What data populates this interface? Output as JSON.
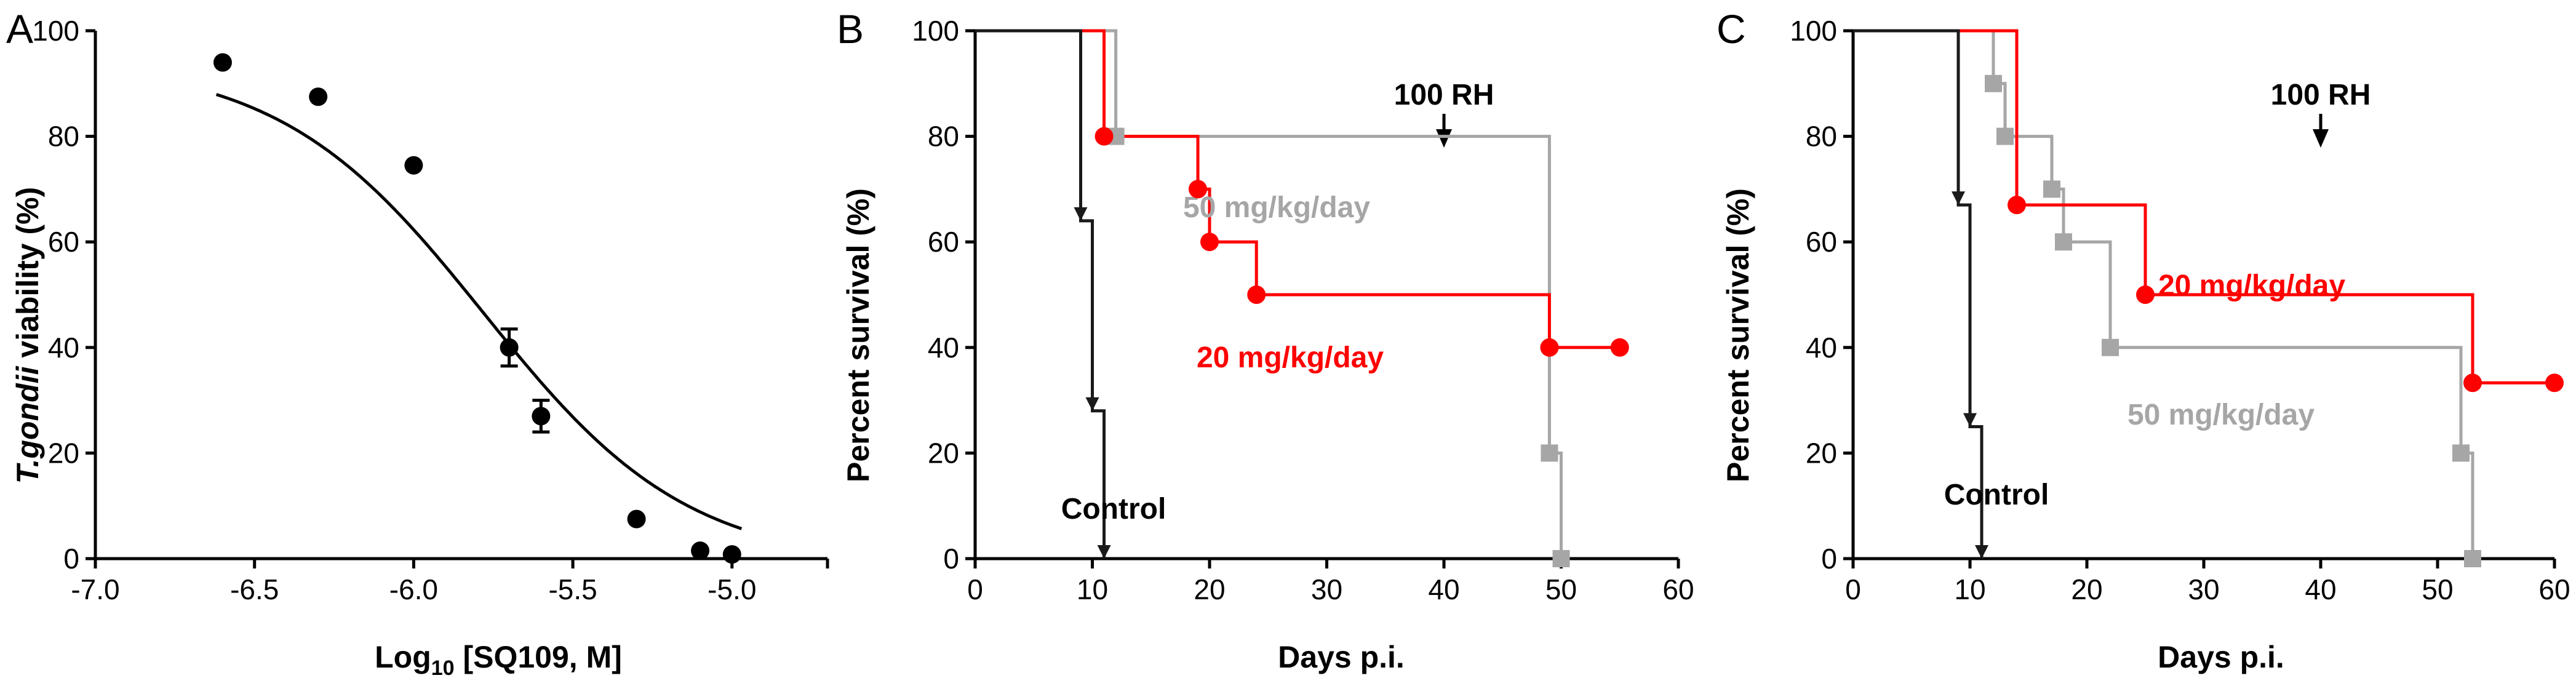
{
  "chart_data": [
    {
      "panel_label": "A",
      "type": "scatter",
      "xlabel_main": "Log",
      "xlabel_sub": "10",
      "xlabel_rest": " [SQ109, M]",
      "ylabel_italic": "T.gondii",
      "ylabel_rest": " viability (%)",
      "xlim": [
        -7.0,
        -4.7
      ],
      "ylim": [
        0,
        100
      ],
      "x_ticks": [
        -7.0,
        -6.5,
        -6.0,
        -5.5,
        -5.0
      ],
      "x_tick_labels": [
        "-7.0",
        "-6.5",
        "-6.0",
        "-5.5",
        "-5.0"
      ],
      "y_ticks": [
        0,
        20,
        40,
        60,
        80,
        100
      ],
      "y_tick_labels": [
        "0",
        "20",
        "40",
        "60",
        "80",
        "100"
      ],
      "points": [
        {
          "x": -6.6,
          "y": 94
        },
        {
          "x": -6.3,
          "y": 87.5
        },
        {
          "x": -6.0,
          "y": 74.5
        },
        {
          "x": -5.7,
          "y": 40,
          "err": 3.5
        },
        {
          "x": -5.6,
          "y": 27,
          "err": 3
        },
        {
          "x": -5.3,
          "y": 7.5
        },
        {
          "x": -5.1,
          "y": 1.5
        },
        {
          "x": -5.0,
          "y": 0.8
        }
      ],
      "fit": {
        "top": 94.5,
        "bottom": -1.5,
        "logIC50": -5.78,
        "hill": -1.35
      }
    },
    {
      "panel_label": "B",
      "type": "line",
      "xlabel": "Days p.i.",
      "ylabel": "Percent survival (%)",
      "xlim": [
        0,
        60
      ],
      "ylim": [
        0,
        100
      ],
      "x_ticks": [
        0,
        10,
        20,
        30,
        40,
        50,
        60
      ],
      "x_tick_labels": [
        "0",
        "10",
        "20",
        "30",
        "40",
        "50",
        "60"
      ],
      "y_ticks": [
        0,
        20,
        40,
        60,
        80,
        100
      ],
      "y_tick_labels": [
        "0",
        "20",
        "40",
        "60",
        "80",
        "100"
      ],
      "challenge": {
        "label": "100 RH",
        "x": 40
      },
      "series": [
        {
          "name": "Control",
          "color": "#1a1a1a",
          "marker": "arrow",
          "steps": [
            [
              0,
              100
            ],
            [
              9,
              100
            ],
            [
              9,
              64
            ],
            [
              10,
              64
            ],
            [
              10,
              28
            ],
            [
              11,
              28
            ],
            [
              11,
              0
            ]
          ],
          "markers": [
            [
              9,
              64
            ],
            [
              10,
              28
            ],
            [
              11,
              0
            ]
          ]
        },
        {
          "name": "50 mg/kg/day",
          "color": "#a6a6a6",
          "marker": "square",
          "steps": [
            [
              0,
              100
            ],
            [
              12,
              100
            ],
            [
              12,
              80
            ],
            [
              49,
              80
            ],
            [
              49,
              20
            ],
            [
              50,
              20
            ],
            [
              50,
              0
            ]
          ],
          "markers": [
            [
              12,
              80
            ],
            [
              49,
              20
            ],
            [
              50,
              0
            ]
          ]
        },
        {
          "name": "20 mg/kg/day",
          "color": "#ff0000",
          "marker": "circle",
          "steps": [
            [
              0,
              100
            ],
            [
              11,
              100
            ],
            [
              11,
              80
            ],
            [
              19,
              80
            ],
            [
              19,
              70
            ],
            [
              20,
              70
            ],
            [
              20,
              60
            ],
            [
              24,
              60
            ],
            [
              24,
              50
            ],
            [
              49,
              50
            ],
            [
              49,
              40
            ],
            [
              55,
              40
            ]
          ],
          "markers": [
            [
              11,
              80
            ],
            [
              19,
              70
            ],
            [
              20,
              60
            ],
            [
              24,
              50
            ],
            [
              49,
              40
            ],
            [
              55,
              40
            ]
          ]
        }
      ]
    },
    {
      "panel_label": "C",
      "type": "line",
      "xlabel": "Days p.i.",
      "ylabel": "Percent survival (%)",
      "xlim": [
        0,
        60
      ],
      "ylim": [
        0,
        100
      ],
      "x_ticks": [
        0,
        10,
        20,
        30,
        40,
        50,
        60
      ],
      "x_tick_labels": [
        "0",
        "10",
        "20",
        "30",
        "40",
        "50",
        "60"
      ],
      "y_ticks": [
        0,
        20,
        40,
        60,
        80,
        100
      ],
      "y_tick_labels": [
        "0",
        "20",
        "40",
        "60",
        "80",
        "100"
      ],
      "challenge": {
        "label": "100 RH",
        "x": 40
      },
      "series": [
        {
          "name": "Control",
          "color": "#1a1a1a",
          "marker": "arrow",
          "steps": [
            [
              0,
              100
            ],
            [
              9,
              100
            ],
            [
              9,
              67
            ],
            [
              10,
              67
            ],
            [
              10,
              25
            ],
            [
              11,
              25
            ],
            [
              11,
              0
            ]
          ],
          "markers": [
            [
              9,
              67
            ],
            [
              10,
              25
            ],
            [
              11,
              0
            ]
          ]
        },
        {
          "name": "50 mg/kg/day",
          "color": "#a6a6a6",
          "marker": "square",
          "steps": [
            [
              0,
              100
            ],
            [
              12,
              100
            ],
            [
              12,
              90
            ],
            [
              13,
              90
            ],
            [
              13,
              80
            ],
            [
              17,
              80
            ],
            [
              17,
              70
            ],
            [
              18,
              70
            ],
            [
              18,
              60
            ],
            [
              22,
              60
            ],
            [
              22,
              40
            ],
            [
              52,
              40
            ],
            [
              52,
              20
            ],
            [
              53,
              20
            ],
            [
              53,
              0
            ]
          ],
          "markers": [
            [
              12,
              90
            ],
            [
              13,
              80
            ],
            [
              17,
              70
            ],
            [
              18,
              60
            ],
            [
              22,
              40
            ],
            [
              52,
              20
            ],
            [
              53,
              0
            ]
          ]
        },
        {
          "name": "20 mg/kg/day",
          "color": "#ff0000",
          "marker": "circle",
          "steps": [
            [
              0,
              100
            ],
            [
              14,
              100
            ],
            [
              14,
              67
            ],
            [
              25,
              67
            ],
            [
              25,
              50
            ],
            [
              53,
              50
            ],
            [
              53,
              33.3
            ],
            [
              60,
              33.3
            ]
          ],
          "markers": [
            [
              14,
              67
            ],
            [
              25,
              50
            ],
            [
              53,
              33.3
            ],
            [
              60,
              33.3
            ]
          ]
        }
      ]
    }
  ]
}
